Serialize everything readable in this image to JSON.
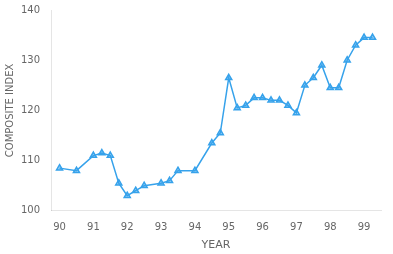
{
  "chart_data": {
    "type": "line",
    "x": [
      90.0,
      90.5,
      91.0,
      91.25,
      91.5,
      91.75,
      92.0,
      92.25,
      92.5,
      93.0,
      93.25,
      93.5,
      94.0,
      94.5,
      94.75,
      95.0,
      95.25,
      95.5,
      95.75,
      96.0,
      96.25,
      96.5,
      96.75,
      97.0,
      97.25,
      97.5,
      97.75,
      98.0,
      98.25,
      98.5,
      98.75,
      99.0,
      99.25
    ],
    "values": [
      108.5,
      108.0,
      111.0,
      111.5,
      111.0,
      105.5,
      103.0,
      104.0,
      105.0,
      105.5,
      106.0,
      108.0,
      108.0,
      113.5,
      115.5,
      126.5,
      120.5,
      121.0,
      122.5,
      122.5,
      122.0,
      122.0,
      121.0,
      119.5,
      125.0,
      126.5,
      129.0,
      124.5,
      124.5,
      130.0,
      133.0,
      134.5,
      134.5
    ],
    "xlabel": "YEAR",
    "ylabel": "COMPOSITE INDEX",
    "xlim": [
      89.75,
      99.5
    ],
    "ylim": [
      100,
      140
    ],
    "xticks": [
      90,
      91,
      92,
      93,
      94,
      95,
      96,
      97,
      98,
      99
    ],
    "yticks": [
      100,
      110,
      120,
      130,
      140
    ],
    "marker": "triangle",
    "grid": false
  }
}
